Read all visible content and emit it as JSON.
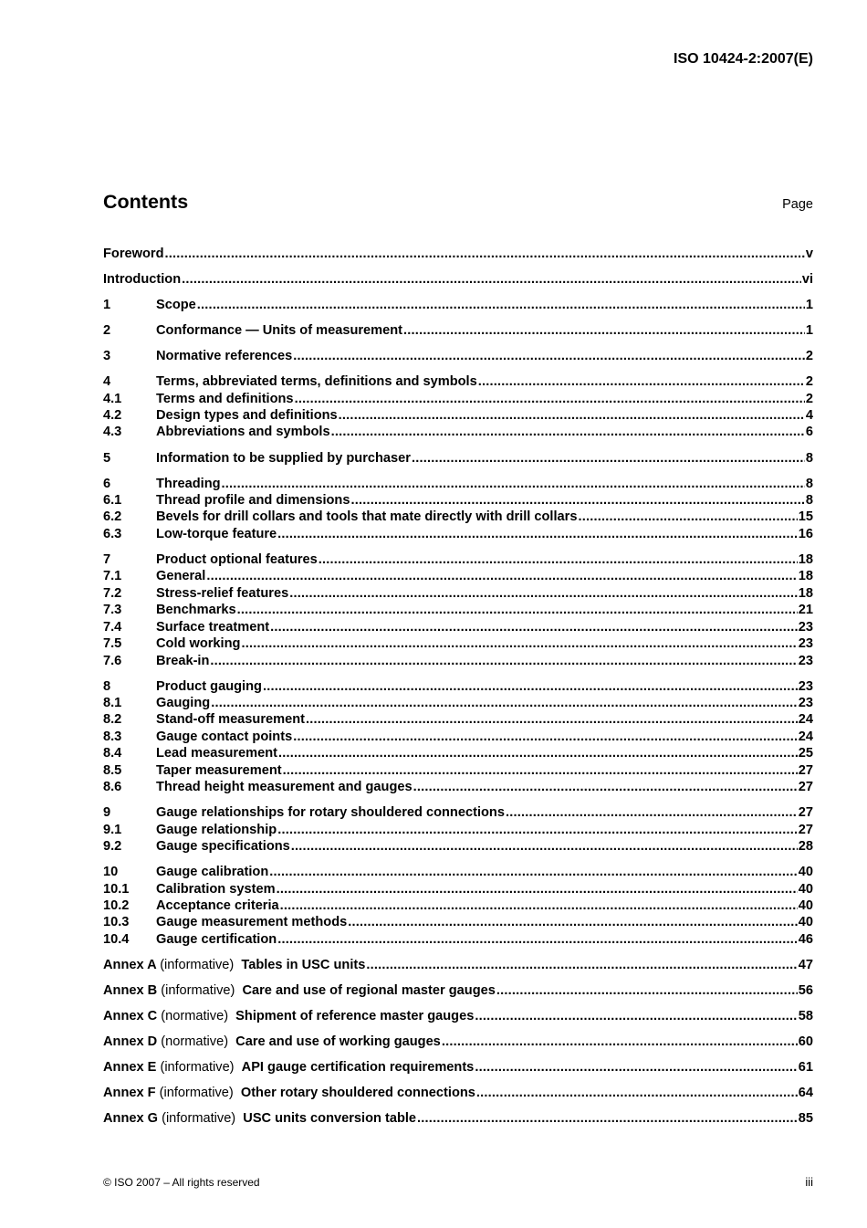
{
  "header": {
    "doc_id": "ISO 10424-2:2007(E)"
  },
  "contents": {
    "title": "Contents",
    "page_label": "Page"
  },
  "toc_groups": [
    [
      {
        "num": "",
        "title": "Foreword",
        "page": "v"
      }
    ],
    [
      {
        "num": "",
        "title": "Introduction",
        "page": "vi"
      }
    ],
    [
      {
        "num": "1",
        "title": "Scope",
        "page": "1"
      }
    ],
    [
      {
        "num": "2",
        "title": "Conformance — Units of measurement",
        "page": "1"
      }
    ],
    [
      {
        "num": "3",
        "title": "Normative references",
        "page": "2"
      }
    ],
    [
      {
        "num": "4",
        "title": "Terms, abbreviated terms, definitions and symbols",
        "page": "2"
      },
      {
        "num": "4.1",
        "title": "Terms and definitions",
        "page": "2"
      },
      {
        "num": "4.2",
        "title": "Design types and definitions",
        "page": "4"
      },
      {
        "num": "4.3",
        "title": "Abbreviations and symbols",
        "page": "6"
      }
    ],
    [
      {
        "num": "5",
        "title": "Information to be supplied by purchaser",
        "page": "8"
      }
    ],
    [
      {
        "num": "6",
        "title": "Threading",
        "page": "8"
      },
      {
        "num": "6.1",
        "title": "Thread profile and dimensions",
        "page": "8"
      },
      {
        "num": "6.2",
        "title": "Bevels for drill collars and tools that mate directly with drill collars",
        "page": "15"
      },
      {
        "num": "6.3",
        "title": "Low-torque feature",
        "page": "16"
      }
    ],
    [
      {
        "num": "7",
        "title": "Product optional features",
        "page": "18"
      },
      {
        "num": "7.1",
        "title": "General",
        "page": "18"
      },
      {
        "num": "7.2",
        "title": "Stress-relief features",
        "page": "18"
      },
      {
        "num": "7.3",
        "title": "Benchmarks",
        "page": "21"
      },
      {
        "num": "7.4",
        "title": "Surface treatment",
        "page": "23"
      },
      {
        "num": "7.5",
        "title": "Cold working",
        "page": "23"
      },
      {
        "num": "7.6",
        "title": "Break-in",
        "page": "23"
      }
    ],
    [
      {
        "num": "8",
        "title": "Product gauging",
        "page": "23"
      },
      {
        "num": "8.1",
        "title": "Gauging",
        "page": "23"
      },
      {
        "num": "8.2",
        "title": "Stand-off measurement",
        "page": "24"
      },
      {
        "num": "8.3",
        "title": "Gauge contact points",
        "page": "24"
      },
      {
        "num": "8.4",
        "title": "Lead measurement",
        "page": "25"
      },
      {
        "num": "8.5",
        "title": "Taper measurement",
        "page": "27"
      },
      {
        "num": "8.6",
        "title": "Thread height measurement and gauges",
        "page": "27"
      }
    ],
    [
      {
        "num": "9",
        "title": "Gauge relationships for rotary shouldered connections",
        "page": "27"
      },
      {
        "num": "9.1",
        "title": "Gauge relationship",
        "page": "27"
      },
      {
        "num": "9.2",
        "title": "Gauge specifications",
        "page": "28"
      }
    ],
    [
      {
        "num": "10",
        "title": "Gauge calibration",
        "page": "40"
      },
      {
        "num": "10.1",
        "title": "Calibration system",
        "page": "40"
      },
      {
        "num": "10.2",
        "title": "Acceptance criteria",
        "page": "40"
      },
      {
        "num": "10.3",
        "title": "Gauge measurement methods",
        "page": "40"
      },
      {
        "num": "10.4",
        "title": "Gauge certification",
        "page": "46"
      }
    ],
    [
      {
        "annex": "Annex A",
        "type": "(informative)",
        "title": "Tables in USC units",
        "page": "47"
      }
    ],
    [
      {
        "annex": "Annex B",
        "type": "(informative)",
        "title": "Care and use of regional master gauges",
        "page": "56"
      }
    ],
    [
      {
        "annex": "Annex C",
        "type": "(normative)",
        "title": "Shipment of reference master gauges",
        "page": "58"
      }
    ],
    [
      {
        "annex": "Annex D",
        "type": "(normative)",
        "title": "Care and use of working gauges",
        "page": "60"
      }
    ],
    [
      {
        "annex": "Annex E",
        "type": "(informative)",
        "title": "API gauge certification requirements",
        "page": "61"
      }
    ],
    [
      {
        "annex": "Annex F",
        "type": "(informative)",
        "title": "Other rotary shouldered connections",
        "page": "64"
      }
    ],
    [
      {
        "annex": "Annex G",
        "type": "(informative)",
        "title": "USC units conversion table",
        "page": "85"
      }
    ]
  ],
  "footer": {
    "copyright": "© ISO 2007 – All rights reserved",
    "page_number": "iii"
  }
}
